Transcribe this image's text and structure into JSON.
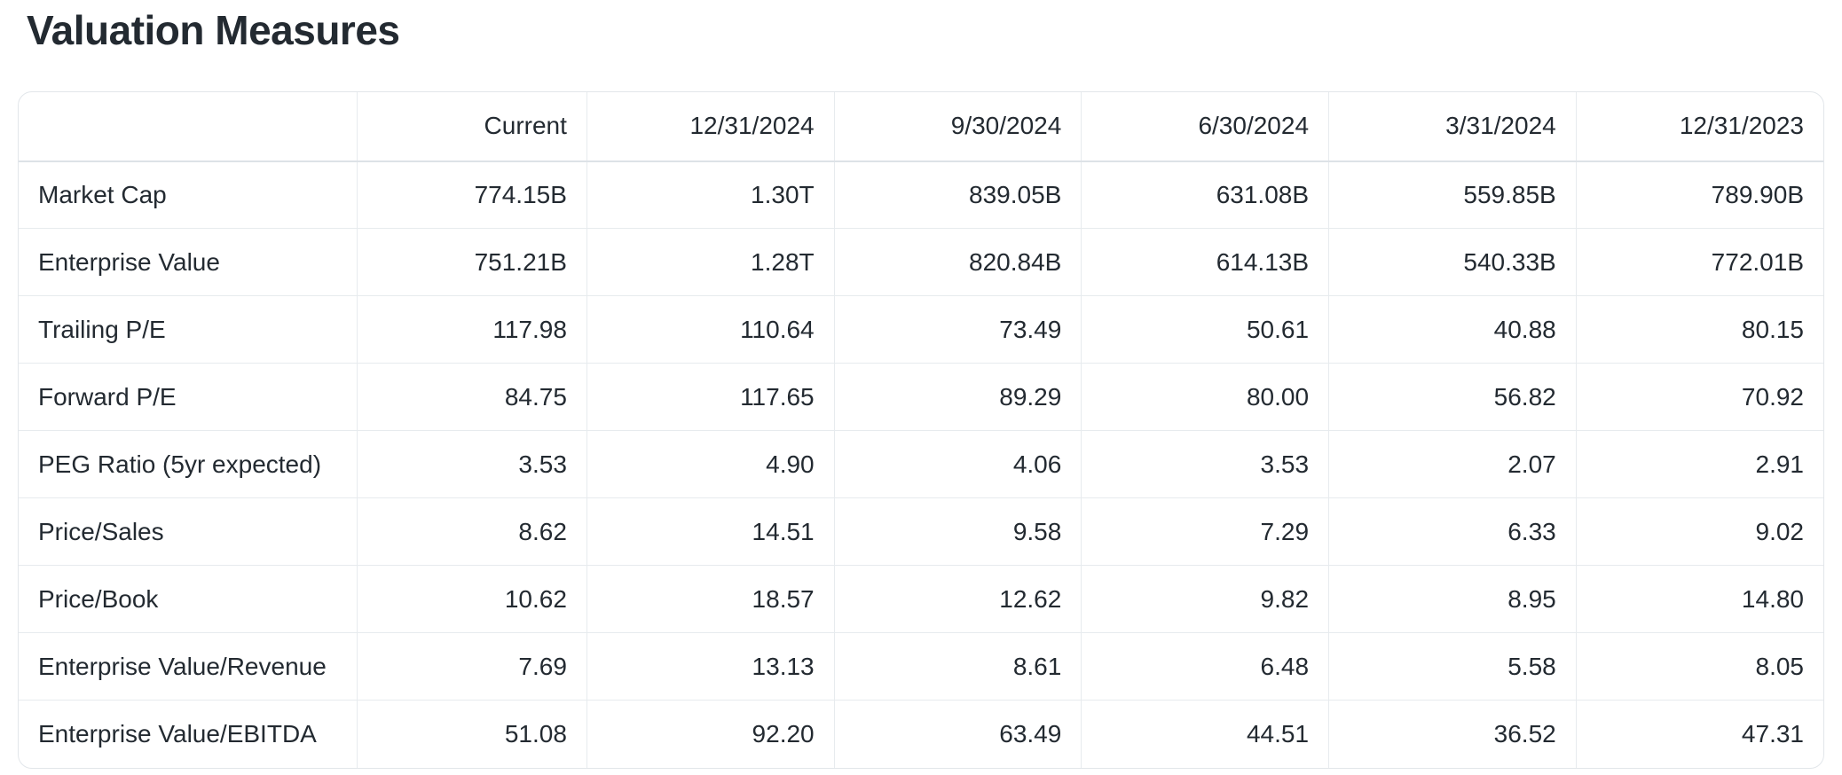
{
  "page": {
    "title": "Valuation Measures"
  },
  "colors": {
    "text": "#232a31",
    "border": "#e2e6ea",
    "header_border": "#dde2e7",
    "background": "#ffffff"
  },
  "table": {
    "headers": [
      "",
      "Current",
      "12/31/2024",
      "9/30/2024",
      "6/30/2024",
      "3/31/2024",
      "12/31/2023"
    ],
    "rows": [
      {
        "label": "Market Cap",
        "values": [
          "774.15B",
          "1.30T",
          "839.05B",
          "631.08B",
          "559.85B",
          "789.90B"
        ]
      },
      {
        "label": "Enterprise Value",
        "values": [
          "751.21B",
          "1.28T",
          "820.84B",
          "614.13B",
          "540.33B",
          "772.01B"
        ]
      },
      {
        "label": "Trailing P/E",
        "values": [
          "117.98",
          "110.64",
          "73.49",
          "50.61",
          "40.88",
          "80.15"
        ]
      },
      {
        "label": "Forward P/E",
        "values": [
          "84.75",
          "117.65",
          "89.29",
          "80.00",
          "56.82",
          "70.92"
        ]
      },
      {
        "label": "PEG Ratio (5yr expected)",
        "values": [
          "3.53",
          "4.90",
          "4.06",
          "3.53",
          "2.07",
          "2.91"
        ]
      },
      {
        "label": "Price/Sales",
        "values": [
          "8.62",
          "14.51",
          "9.58",
          "7.29",
          "6.33",
          "9.02"
        ]
      },
      {
        "label": "Price/Book",
        "values": [
          "10.62",
          "18.57",
          "12.62",
          "9.82",
          "8.95",
          "14.80"
        ]
      },
      {
        "label": "Enterprise Value/Revenue",
        "values": [
          "7.69",
          "13.13",
          "8.61",
          "6.48",
          "5.58",
          "8.05"
        ]
      },
      {
        "label": "Enterprise Value/EBITDA",
        "values": [
          "51.08",
          "92.20",
          "63.49",
          "44.51",
          "36.52",
          "47.31"
        ]
      }
    ]
  }
}
